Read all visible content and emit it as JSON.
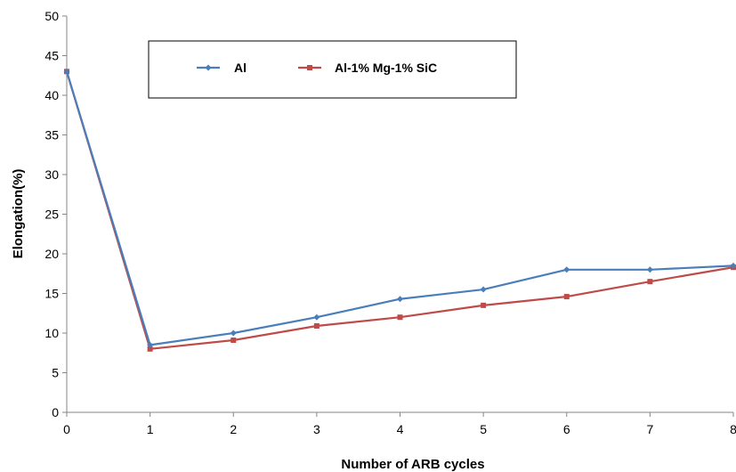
{
  "chart_data": {
    "type": "line",
    "xlabel": "Number of ARB cycles",
    "ylabel": "Elongation(%)",
    "x": [
      0,
      1,
      2,
      3,
      4,
      5,
      6,
      7,
      8
    ],
    "xlim": [
      0,
      8
    ],
    "ylim": [
      0,
      50
    ],
    "y_ticks": [
      0,
      5,
      10,
      15,
      20,
      25,
      30,
      35,
      40,
      45,
      50
    ],
    "x_ticks": [
      0,
      1,
      2,
      3,
      4,
      5,
      6,
      7,
      8
    ],
    "grid": false,
    "legend_position": "top",
    "series": [
      {
        "name": "Al",
        "color": "#4a7ebb",
        "marker": "diamond",
        "values": [
          43,
          8.5,
          10,
          12,
          14.3,
          15.5,
          18,
          18,
          18.5
        ]
      },
      {
        "name": "Al-1% Mg-1% SiC",
        "color": "#be4b48",
        "marker": "square",
        "values": [
          43,
          8,
          9.1,
          10.9,
          12,
          13.5,
          14.6,
          16.5,
          18.3
        ]
      }
    ]
  }
}
